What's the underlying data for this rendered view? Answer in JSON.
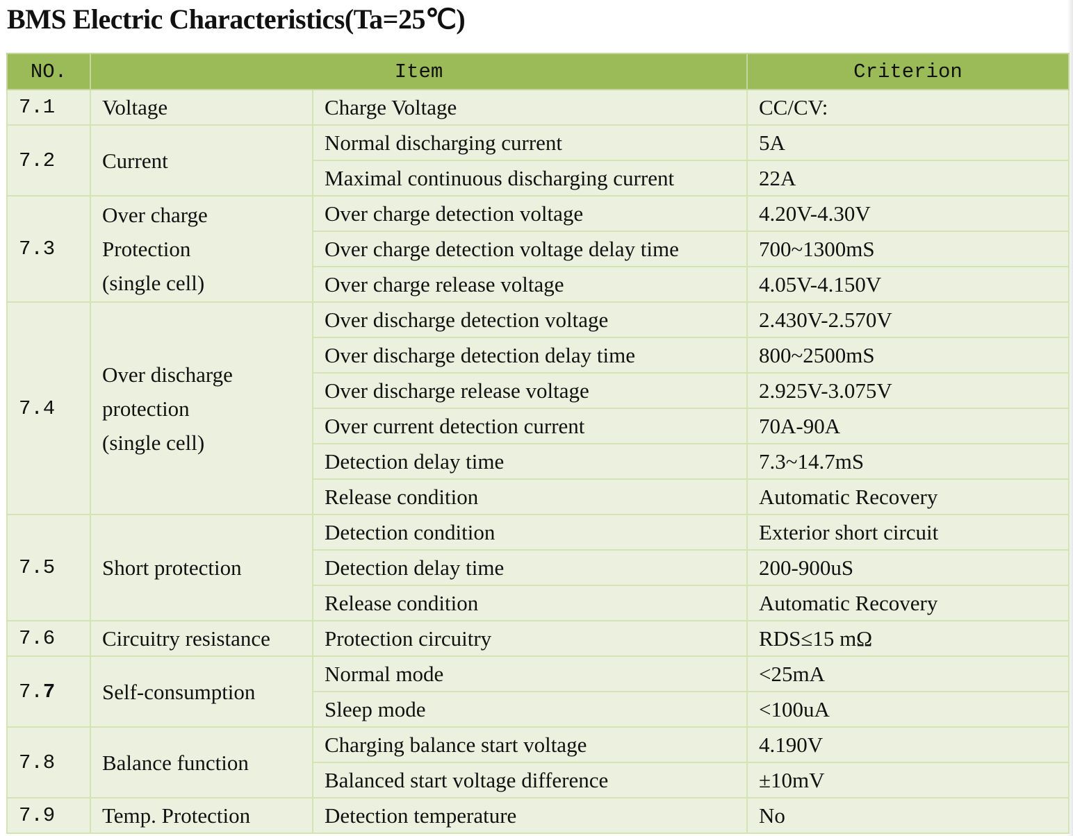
{
  "title": "BMS Electric Characteristics(Ta=25℃)",
  "headers": {
    "no": "NO.",
    "item": "Item",
    "criterion": "Criterion"
  },
  "rows": [
    {
      "no": "7.1",
      "group": [
        "Voltage"
      ],
      "items": [
        {
          "item": "Charge Voltage",
          "criterion": "CC/CV:"
        }
      ]
    },
    {
      "no": "7.2",
      "group": [
        "Current"
      ],
      "items": [
        {
          "item": "Normal discharging current",
          "criterion": "5A"
        },
        {
          "item": "Maximal continuous discharging current",
          "criterion": "22A"
        }
      ]
    },
    {
      "no": "7.3",
      "group": [
        "Over charge",
        "Protection",
        "(single cell)"
      ],
      "items": [
        {
          "item": "Over charge detection voltage",
          "criterion": "4.20V-4.30V"
        },
        {
          "item": "Over charge detection voltage delay time",
          "criterion": "700~1300mS"
        },
        {
          "item": "Over charge release voltage",
          "criterion": "4.05V-4.150V"
        }
      ]
    },
    {
      "no": "7.4",
      "group": [
        "Over discharge",
        "protection",
        "(single cell)"
      ],
      "items": [
        {
          "item": "Over discharge detection voltage",
          "criterion": "2.430V-2.570V"
        },
        {
          "item": "Over discharge detection delay time",
          "criterion": "800~2500mS"
        },
        {
          "item": "Over discharge release voltage",
          "criterion": "2.925V-3.075V"
        },
        {
          "item": "Over current detection current",
          "criterion": "70A-90A"
        },
        {
          "item": "Detection delay time",
          "criterion": "7.3~14.7mS"
        },
        {
          "item": "Release condition",
          "criterion": "Automatic Recovery"
        }
      ]
    },
    {
      "no": "7.5",
      "group": [
        "Short protection"
      ],
      "items": [
        {
          "item": "Detection condition",
          "criterion": "Exterior short circuit"
        },
        {
          "item": "Detection delay time",
          "criterion": "200-900uS"
        },
        {
          "item": "Release condition",
          "criterion": "Automatic Recovery"
        }
      ]
    },
    {
      "no": "7.6",
      "group": [
        "Circuitry resistance"
      ],
      "items": [
        {
          "item": "Protection circuitry",
          "criterion": "RDS≤15 mΩ"
        }
      ]
    },
    {
      "no": "7.7",
      "group": [
        "Self-consumption"
      ],
      "items": [
        {
          "item": "Normal mode",
          "criterion": "<25mA"
        },
        {
          "item": "Sleep mode",
          "criterion": "<100uA"
        }
      ]
    },
    {
      "no": "7.8",
      "group": [
        "Balance function"
      ],
      "items": [
        {
          "item": "Charging balance start voltage",
          "criterion": "4.190V"
        },
        {
          "item": "Balanced start voltage difference",
          "criterion": "±10mV"
        }
      ]
    },
    {
      "no": "7.9",
      "group": [
        "Temp. Protection"
      ],
      "items": [
        {
          "item": "Detection temperature",
          "criterion": "No"
        }
      ]
    }
  ]
}
